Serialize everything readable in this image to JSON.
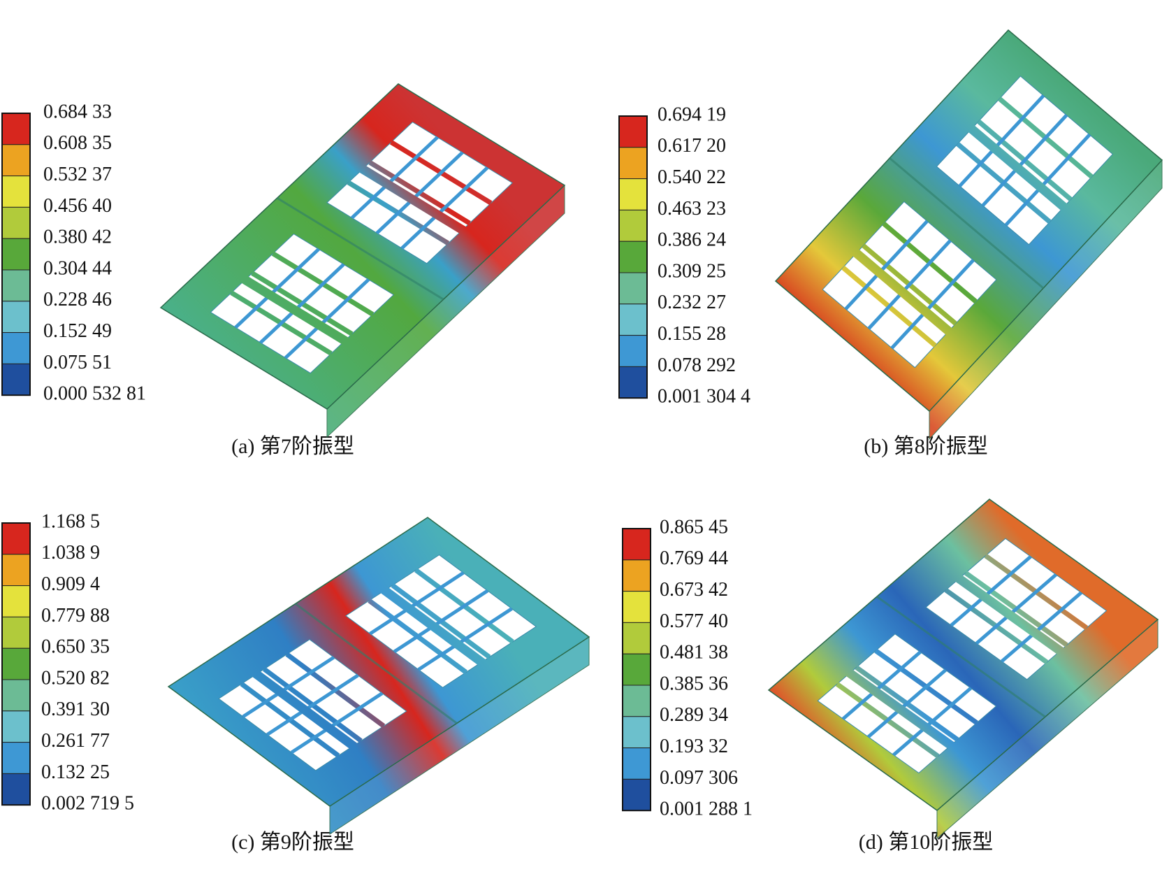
{
  "panels": [
    {
      "caption": "(a) 第7阶振型",
      "legend": [
        "0.684 33",
        "0.608 35",
        "0.532 37",
        "0.456 40",
        "0.380 42",
        "0.304 44",
        "0.228 46",
        "0.152 49",
        "0.075 51",
        "0.000 532 81"
      ]
    },
    {
      "caption": "(b) 第8阶振型",
      "legend": [
        "0.694 19",
        "0.617 20",
        "0.540 22",
        "0.463 23",
        "0.386 24",
        "0.309 25",
        "0.232 27",
        "0.155 28",
        "0.078 292",
        "0.001 304 4"
      ]
    },
    {
      "caption": "(c) 第9阶振型",
      "legend": [
        "1.168 5",
        "1.038 9",
        "0.909 4",
        "0.779 88",
        "0.650 35",
        "0.520 82",
        "0.391 30",
        "0.261 77",
        "0.132 25",
        "0.002 719 5"
      ]
    },
    {
      "caption": "(d) 第10阶振型",
      "legend": [
        "0.865 45",
        "0.769 44",
        "0.673 42",
        "0.577 40",
        "0.481 38",
        "0.385 36",
        "0.289 34",
        "0.193 32",
        "0.097 306",
        "0.001 288 1"
      ]
    }
  ]
}
